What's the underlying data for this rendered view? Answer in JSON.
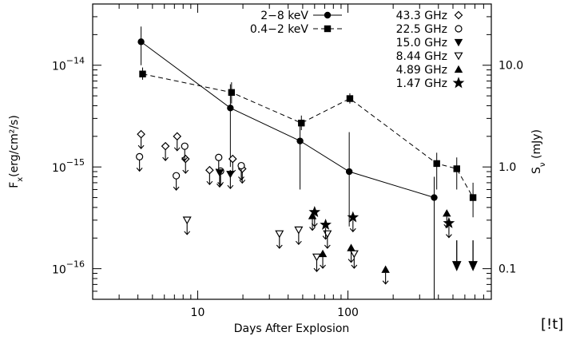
{
  "chart_data": {
    "type": "scatter",
    "xscale": "log",
    "yscale": "log",
    "xlim": [
      2,
      900
    ],
    "ylim": [
      5e-17,
      4e-14
    ],
    "y2lim": [
      0.05,
      40
    ],
    "xlabel": "Days After Explosion",
    "ylabel": "F",
    "ylabel_sub": "x",
    "ylabel_units": "(erg/cm²/s)",
    "y2label": "S",
    "y2label_sub": "ν",
    "y2label_units": " (mJy)",
    "x_ticks": [
      {
        "value": 10,
        "label": "10"
      },
      {
        "value": 100,
        "label": "100"
      }
    ],
    "y_ticks": [
      {
        "value": 1e-16,
        "base": "10",
        "exp": "−16"
      },
      {
        "value": 1e-15,
        "base": "10",
        "exp": "−15"
      },
      {
        "value": 1e-14,
        "base": "10",
        "exp": "−14"
      }
    ],
    "y2_ticks": [
      {
        "value": 0.1,
        "label": "0.1"
      },
      {
        "value": 1.0,
        "label": "1.0"
      },
      {
        "value": 10.0,
        "label": "10.0"
      }
    ],
    "xray_series": [
      {
        "name": "2−8 keV",
        "marker": "circle",
        "line": "solid",
        "points": [
          {
            "x": 4.2,
            "y": 1.7e-14,
            "lo": 1e-14,
            "hi": 2.4e-14
          },
          {
            "x": 16.5,
            "y": 3.8e-15,
            "lo": 1e-15,
            "hi": 6.5e-15
          },
          {
            "x": 48,
            "y": 1.8e-15,
            "lo": 6e-16,
            "hi": 2.6e-15
          },
          {
            "x": 102,
            "y": 9e-16,
            "lo": 2.6e-16,
            "hi": 2.2e-15
          },
          {
            "x": 375,
            "y": 5e-16,
            "lo": 5e-17,
            "hi": 8e-16
          }
        ]
      },
      {
        "name": "0.4−2 keV",
        "marker": "square",
        "line": "dashed",
        "points": [
          {
            "x": 4.3,
            "y": 8.2e-15,
            "lo": 7.2e-15,
            "hi": 9.5e-15
          },
          {
            "x": 16.8,
            "y": 5.4e-15,
            "lo": 4.2e-15,
            "hi": 6.8e-15
          },
          {
            "x": 49,
            "y": 2.7e-15,
            "lo": 2.3e-15,
            "hi": 3.2e-15
          },
          {
            "x": 103,
            "y": 4.7e-15,
            "lo": 4.2e-15,
            "hi": 5.3e-15
          },
          {
            "x": 390,
            "y": 1.08e-15,
            "lo": 6e-16,
            "hi": 1.38e-15
          },
          {
            "x": 530,
            "y": 9.6e-16,
            "lo": 6e-16,
            "hi": 1.24e-15
          },
          {
            "x": 680,
            "y": 5e-16,
            "lo": 3.2e-16,
            "hi": 7e-16
          }
        ]
      }
    ],
    "xray_upper_limits": [
      {
        "x": 530,
        "y": 1.9e-16,
        "to": 1e-16
      },
      {
        "x": 680,
        "y": 1.9e-16,
        "to": 1e-16
      }
    ],
    "radio_series": [
      {
        "name": "43.3 GHz",
        "marker": "diamond",
        "points": [
          {
            "x": 4.2,
            "y": 2.1,
            "limit": true
          },
          {
            "x": 6.1,
            "y": 1.6,
            "limit": true
          },
          {
            "x": 7.3,
            "y": 2.0,
            "limit": true
          },
          {
            "x": 8.3,
            "y": 1.2,
            "limit": true
          },
          {
            "x": 12.0,
            "y": 0.93,
            "limit": true
          },
          {
            "x": 17.1,
            "y": 1.2,
            "limit": true
          },
          {
            "x": 19.8,
            "y": 0.96,
            "limit": true
          }
        ]
      },
      {
        "name": "22.5 GHz",
        "marker": "circle-open",
        "points": [
          {
            "x": 4.1,
            "y": 1.26,
            "limit": true
          },
          {
            "x": 7.2,
            "y": 0.82,
            "limit": true
          },
          {
            "x": 8.2,
            "y": 1.6,
            "limit": true
          },
          {
            "x": 13.8,
            "y": 1.24,
            "limit": true
          },
          {
            "x": 14.2,
            "y": 0.91,
            "limit": true
          },
          {
            "x": 19.5,
            "y": 1.03,
            "limit": true
          }
        ]
      },
      {
        "name": "15.0 GHz",
        "marker": "triangle-down-filled",
        "points": [
          {
            "x": 14.0,
            "y": 0.88,
            "limit": true
          },
          {
            "x": 16.5,
            "y": 0.85,
            "limit": true
          }
        ]
      },
      {
        "name": "8.44 GHz",
        "marker": "triangle-down-open",
        "points": [
          {
            "x": 8.5,
            "y": 0.3,
            "limit": true
          },
          {
            "x": 35,
            "y": 0.22,
            "limit": true
          },
          {
            "x": 47,
            "y": 0.24,
            "limit": true
          },
          {
            "x": 62,
            "y": 0.13,
            "limit": true
          },
          {
            "x": 73,
            "y": 0.22,
            "limit": true
          },
          {
            "x": 110,
            "y": 0.14,
            "limit": true
          }
        ]
      },
      {
        "name": "4.89 GHz",
        "marker": "triangle-up-filled",
        "points": [
          {
            "x": 58,
            "y": 0.33,
            "limit": true
          },
          {
            "x": 68,
            "y": 0.14,
            "limit": true
          },
          {
            "x": 105,
            "y": 0.16,
            "limit": true
          },
          {
            "x": 178,
            "y": 0.098,
            "limit": true
          },
          {
            "x": 455,
            "y": 0.35,
            "limit": true
          }
        ]
      },
      {
        "name": "1.47 GHz",
        "marker": "star",
        "points": [
          {
            "x": 60,
            "y": 0.36,
            "limit": true
          },
          {
            "x": 71,
            "y": 0.27,
            "limit": true
          },
          {
            "x": 108,
            "y": 0.32,
            "limit": true
          },
          {
            "x": 470,
            "y": 0.28,
            "limit": true
          }
        ]
      }
    ],
    "legend": {
      "placement": "top"
    },
    "grid": false
  },
  "corner_note": "[!t]"
}
